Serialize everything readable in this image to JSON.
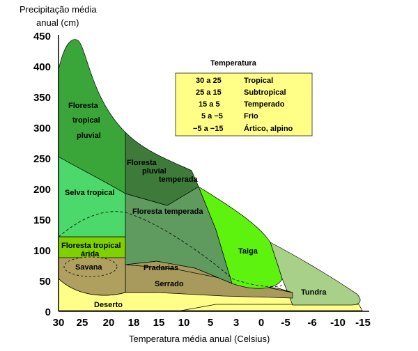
{
  "y_axis_title_line1": "Precipitação média",
  "y_axis_title_line2": "anual (cm)",
  "x_axis_title": "Temperatura média anual (Celsius)",
  "y_ticks": [
    "450",
    "400",
    "350",
    "300",
    "250",
    "200",
    "150",
    "100",
    "50",
    "0"
  ],
  "x_ticks": [
    "30",
    "25",
    "20",
    "18",
    "15",
    "10",
    "5",
    "3",
    "0",
    "-5",
    "-6",
    "-10",
    "-15"
  ],
  "biomes": {
    "floresta_tropical_pluvial": [
      "Floresta",
      "tropical",
      "pluvial"
    ],
    "selva_tropical": "Selva tropical",
    "floresta_pluvial_temperada": [
      "Floresta",
      "pluvial",
      "temperada"
    ],
    "floresta_temperada": "Floresta temperada",
    "taiga": "Taiga",
    "floresta_tropical_arida": [
      "Floresta tropical",
      "árida"
    ],
    "savana": "Savana",
    "pradarias": "Pradarias",
    "serrado": "Serrado",
    "deserto": "Deserto",
    "tundra": "Tundra"
  },
  "legend": {
    "title": "Temperatura",
    "rows": [
      {
        "range": "30 a 25",
        "name": "Tropical"
      },
      {
        "range": "25 a 15",
        "name": "Subtropical"
      },
      {
        "range": "15 a  5",
        "name": "Temperado"
      },
      {
        "range": "5 a −5",
        "name": "Frio"
      },
      {
        "range": "−5 a −15",
        "name": "Ártico, alpino"
      }
    ]
  },
  "colors": {
    "floresta_tropical_pluvial": "#3aa63a",
    "selva_tropical": "#4cd86a",
    "floresta_pluvial_temperada": "#3e7a3a",
    "floresta_temperada": "#5f9a5f",
    "taiga": "#5ef20f",
    "floresta_tropical_arida": "#7fd000",
    "savana": "#b0a060",
    "pradarias": "#a89a5c",
    "serrado": "#a89a5c",
    "deserto": "#ffff88",
    "tundra": "#a8d088",
    "legend_box": "#ffff88"
  }
}
